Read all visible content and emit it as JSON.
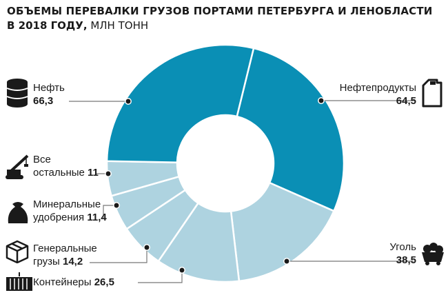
{
  "title_line1": "ОБЪЕМЫ ПЕРЕВАЛКИ ГРУЗОВ ПОРТАМИ ПЕТЕРБУРГА И ЛЕНОБЛАСТИ",
  "title_line2_bold": "В 2018 ГОДУ,",
  "title_line2_unit": " МЛН ТОНН",
  "colors": {
    "dark": "#0a8fb5",
    "light": "#aed3e0",
    "leader": "#777777",
    "icon": "#1a1a1a"
  },
  "chart_data": {
    "type": "pie",
    "variant": "donut",
    "unit": "млн тонн",
    "slices": [
      {
        "label": "Нефтепродукты",
        "value": 64.5,
        "display": "64,5",
        "color": "dark",
        "icon": "canister-icon"
      },
      {
        "label": "Уголь",
        "value": 38.5,
        "display": "38,5",
        "color": "light",
        "icon": "coal-cart-icon"
      },
      {
        "label": "Контейнеры",
        "value": 26.5,
        "display": "26,5",
        "color": "light",
        "icon": "container-icon"
      },
      {
        "label": "Генеральные грузы",
        "value": 14.2,
        "display": "14,2",
        "color": "light",
        "icon": "box-icon"
      },
      {
        "label": "Минеральные удобрения",
        "value": 11.4,
        "display": "11,4",
        "color": "light",
        "icon": "fertilizer-sack-icon"
      },
      {
        "label": "Все остальные",
        "value": 11,
        "display": "11",
        "color": "light",
        "icon": "crane-icon"
      },
      {
        "label": "Нефть",
        "value": 66.3,
        "display": "66,3",
        "color": "dark",
        "icon": "oil-barrel-icon"
      }
    ]
  },
  "labels": {
    "oil": {
      "name": "Нефть",
      "value": "66,3"
    },
    "petroleum": {
      "name": "Нефтепродукты",
      "value": "64,5"
    },
    "other": {
      "line1": "Все",
      "line2": "остальные",
      "value": "11"
    },
    "fertilizer": {
      "line1": "Минеральные",
      "line2": "удобрения",
      "value": "11,4"
    },
    "general": {
      "line1": "Генеральные",
      "line2": "грузы",
      "value": "14,2"
    },
    "containers": {
      "name": "Контейнеры",
      "value": "26,5"
    },
    "coal": {
      "name": "Уголь",
      "value": "38,5"
    }
  }
}
